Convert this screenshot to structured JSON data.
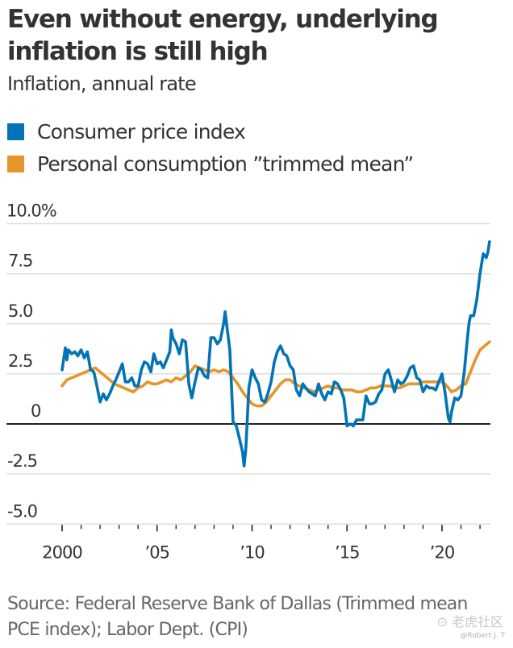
{
  "header": {
    "title": "Even without energy, underlying inflation is still high",
    "subtitle": "Inflation, annual rate"
  },
  "footer": {
    "source": "Source: Federal Reserve Bank of Dallas (Trimmed mean PCE index); Labor Dept. (CPI)",
    "watermark": "⊙ 老虎社区",
    "watermark_user": "@Robert J. T"
  },
  "chart_data": {
    "type": "line",
    "title": "Even without energy, underlying inflation is still high",
    "subtitle": "Inflation, annual rate",
    "xlabel": "",
    "ylabel": "",
    "xlim": [
      2000,
      2022.6
    ],
    "ylim": [
      -5.0,
      10.0
    ],
    "grid": true,
    "legend_position": "top-left",
    "y_ticks": [
      {
        "value": 10.0,
        "label": "10.0%"
      },
      {
        "value": 7.5,
        "label": "7.5"
      },
      {
        "value": 5.0,
        "label": "5.0"
      },
      {
        "value": 2.5,
        "label": "2.5"
      },
      {
        "value": 0,
        "label": "0"
      },
      {
        "value": -2.5,
        "label": "-2.5"
      },
      {
        "value": -5.0,
        "label": "-5.0"
      }
    ],
    "x_major_ticks": [
      {
        "value": 2000,
        "label": "2000"
      },
      {
        "value": 2005,
        "label": "’05"
      },
      {
        "value": 2010,
        "label": "’10"
      },
      {
        "value": 2015,
        "label": "’15"
      },
      {
        "value": 2020,
        "label": "’20"
      }
    ],
    "x_minor_ticks": [
      2001,
      2002,
      2003,
      2004,
      2006,
      2007,
      2008,
      2009,
      2011,
      2012,
      2013,
      2014,
      2016,
      2017,
      2018,
      2019,
      2021,
      2022
    ],
    "series": [
      {
        "name": "Consumer price index",
        "color": "#0274B6",
        "x": [
          2000.0,
          2000.17,
          2000.25,
          2000.33,
          2000.5,
          2000.67,
          2000.83,
          2001.0,
          2001.17,
          2001.33,
          2001.5,
          2001.67,
          2001.83,
          2002.0,
          2002.17,
          2002.33,
          2002.5,
          2002.67,
          2002.83,
          2003.0,
          2003.17,
          2003.33,
          2003.5,
          2003.67,
          2003.83,
          2004.0,
          2004.17,
          2004.33,
          2004.5,
          2004.67,
          2004.83,
          2005.0,
          2005.17,
          2005.33,
          2005.5,
          2005.67,
          2005.75,
          2005.83,
          2006.0,
          2006.17,
          2006.33,
          2006.5,
          2006.67,
          2006.83,
          2007.0,
          2007.17,
          2007.33,
          2007.5,
          2007.67,
          2007.83,
          2008.0,
          2008.17,
          2008.33,
          2008.5,
          2008.58,
          2008.67,
          2008.83,
          2009.0,
          2009.17,
          2009.33,
          2009.5,
          2009.58,
          2009.67,
          2009.83,
          2010.0,
          2010.17,
          2010.33,
          2010.5,
          2010.67,
          2010.83,
          2011.0,
          2011.17,
          2011.33,
          2011.5,
          2011.67,
          2011.83,
          2012.0,
          2012.17,
          2012.33,
          2012.5,
          2012.67,
          2012.83,
          2013.0,
          2013.17,
          2013.33,
          2013.5,
          2013.67,
          2013.83,
          2014.0,
          2014.17,
          2014.33,
          2014.5,
          2014.67,
          2014.83,
          2015.0,
          2015.17,
          2015.33,
          2015.5,
          2015.67,
          2015.83,
          2016.0,
          2016.17,
          2016.33,
          2016.5,
          2016.67,
          2016.83,
          2017.0,
          2017.17,
          2017.33,
          2017.5,
          2017.67,
          2017.83,
          2018.0,
          2018.17,
          2018.33,
          2018.5,
          2018.67,
          2018.83,
          2019.0,
          2019.17,
          2019.33,
          2019.5,
          2019.67,
          2019.83,
          2020.0,
          2020.17,
          2020.33,
          2020.42,
          2020.5,
          2020.67,
          2020.83,
          2021.0,
          2021.17,
          2021.33,
          2021.42,
          2021.5,
          2021.67,
          2021.83,
          2022.0,
          2022.17,
          2022.33,
          2022.42,
          2022.5
        ],
        "values": [
          2.7,
          3.8,
          3.2,
          3.7,
          3.5,
          3.6,
          3.4,
          3.7,
          3.3,
          3.6,
          2.7,
          2.6,
          1.9,
          1.1,
          1.5,
          1.2,
          1.5,
          1.9,
          2.2,
          2.6,
          3.0,
          2.1,
          2.1,
          2.3,
          1.9,
          1.9,
          2.7,
          3.1,
          3.0,
          2.6,
          3.5,
          3.0,
          3.1,
          2.8,
          3.2,
          3.6,
          4.7,
          4.3,
          4.0,
          3.5,
          4.2,
          4.1,
          2.0,
          1.3,
          2.1,
          2.8,
          2.7,
          2.4,
          2.3,
          4.3,
          4.3,
          4.0,
          4.2,
          5.0,
          5.6,
          4.9,
          3.7,
          0.1,
          -0.1,
          -0.7,
          -1.4,
          -2.1,
          -1.3,
          1.8,
          2.7,
          2.3,
          2.0,
          1.2,
          1.1,
          1.5,
          2.1,
          3.1,
          3.6,
          3.9,
          3.5,
          3.4,
          2.9,
          2.7,
          1.7,
          1.4,
          2.0,
          1.8,
          1.6,
          1.5,
          1.4,
          2.0,
          1.5,
          1.2,
          1.6,
          1.5,
          2.1,
          2.0,
          1.7,
          1.3,
          -0.1,
          0.0,
          -0.1,
          0.2,
          0.2,
          0.2,
          1.4,
          1.0,
          1.0,
          1.1,
          1.5,
          1.7,
          2.5,
          2.7,
          2.2,
          1.6,
          2.2,
          2.0,
          2.1,
          2.4,
          2.8,
          2.9,
          2.3,
          2.2,
          1.6,
          1.9,
          1.8,
          1.8,
          1.7,
          2.1,
          2.5,
          1.5,
          0.3,
          0.1,
          0.6,
          1.3,
          1.2,
          1.4,
          2.6,
          4.2,
          5.0,
          5.4,
          5.4,
          6.2,
          7.5,
          8.5,
          8.3,
          8.6,
          9.1
        ]
      },
      {
        "name": "Personal consumption ”trimmed mean”",
        "color": "#E5962A",
        "x": [
          2000.0,
          2000.25,
          2000.5,
          2000.75,
          2001.0,
          2001.25,
          2001.5,
          2001.75,
          2002.0,
          2002.25,
          2002.5,
          2002.75,
          2003.0,
          2003.25,
          2003.5,
          2003.75,
          2004.0,
          2004.25,
          2004.5,
          2004.75,
          2005.0,
          2005.25,
          2005.5,
          2005.75,
          2006.0,
          2006.25,
          2006.5,
          2006.75,
          2007.0,
          2007.25,
          2007.5,
          2007.75,
          2008.0,
          2008.25,
          2008.5,
          2008.75,
          2009.0,
          2009.25,
          2009.5,
          2009.75,
          2010.0,
          2010.25,
          2010.5,
          2010.75,
          2011.0,
          2011.25,
          2011.5,
          2011.75,
          2012.0,
          2012.25,
          2012.5,
          2012.75,
          2013.0,
          2013.25,
          2013.5,
          2013.75,
          2014.0,
          2014.25,
          2014.5,
          2014.75,
          2015.0,
          2015.25,
          2015.5,
          2015.75,
          2016.0,
          2016.25,
          2016.5,
          2016.75,
          2017.0,
          2017.25,
          2017.5,
          2017.75,
          2018.0,
          2018.25,
          2018.5,
          2018.75,
          2019.0,
          2019.25,
          2019.5,
          2019.75,
          2020.0,
          2020.25,
          2020.5,
          2020.75,
          2021.0,
          2021.25,
          2021.5,
          2021.75,
          2022.0,
          2022.25,
          2022.5
        ],
        "values": [
          1.9,
          2.2,
          2.3,
          2.4,
          2.5,
          2.6,
          2.7,
          2.8,
          2.6,
          2.4,
          2.2,
          2.0,
          1.9,
          1.8,
          1.7,
          1.6,
          1.8,
          1.9,
          2.1,
          2.0,
          2.0,
          2.1,
          2.2,
          2.1,
          2.3,
          2.2,
          2.4,
          2.6,
          2.9,
          2.8,
          2.7,
          2.6,
          2.7,
          2.6,
          2.7,
          2.6,
          2.3,
          2.0,
          1.6,
          1.3,
          1.0,
          0.9,
          0.9,
          1.1,
          1.4,
          1.7,
          2.0,
          2.2,
          2.2,
          2.0,
          1.9,
          1.8,
          1.7,
          1.6,
          1.7,
          1.8,
          1.9,
          1.8,
          1.8,
          1.7,
          1.7,
          1.7,
          1.6,
          1.6,
          1.7,
          1.8,
          1.8,
          1.9,
          1.9,
          1.9,
          1.8,
          1.8,
          1.9,
          2.0,
          2.0,
          2.0,
          2.1,
          2.1,
          2.1,
          2.1,
          2.1,
          1.9,
          1.6,
          1.7,
          1.9,
          2.0,
          2.6,
          3.2,
          3.7,
          3.9,
          4.1
        ]
      }
    ]
  }
}
